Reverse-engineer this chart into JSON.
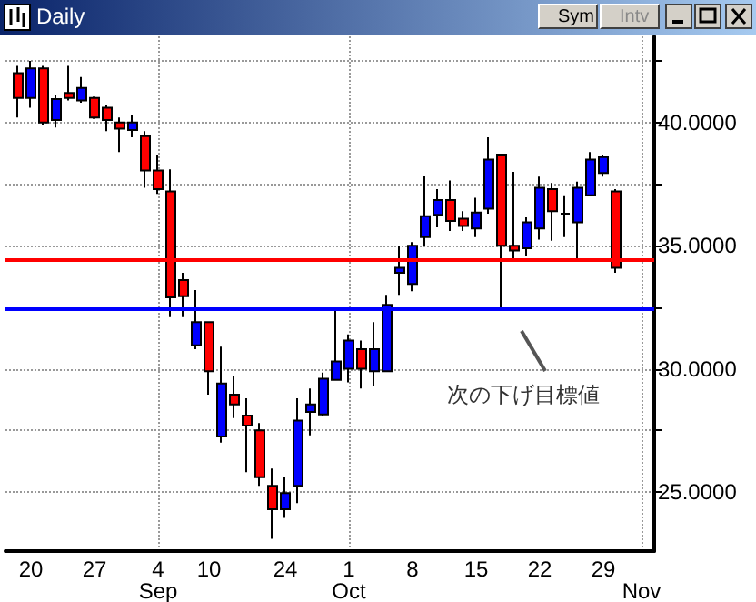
{
  "chart_data": {
    "type": "candlestick",
    "title": "Daily",
    "categories": [
      null,
      null,
      "20",
      null,
      null,
      null,
      null,
      "27",
      null,
      null,
      null,
      null,
      "4\nSep",
      null,
      null,
      null,
      "10",
      null,
      null,
      null,
      null,
      null,
      "24",
      null,
      null,
      null,
      null,
      "1\nOct",
      null,
      null,
      null,
      null,
      "8",
      null,
      null,
      null,
      null,
      "15",
      null,
      null,
      null,
      null,
      "22",
      null,
      null,
      null,
      null,
      "29",
      null,
      null,
      "\nNov",
      null
    ],
    "ohlc": [
      null,
      [
        42.0,
        42.3,
        40.2,
        41.0
      ],
      [
        41.0,
        42.5,
        40.6,
        42.2
      ],
      [
        42.2,
        42.3,
        39.9,
        40.0
      ],
      [
        40.1,
        41.1,
        39.8,
        40.95
      ],
      [
        41.2,
        42.3,
        40.9,
        41.0
      ],
      [
        40.9,
        41.85,
        40.8,
        41.4
      ],
      [
        41.0,
        41.05,
        40.15,
        40.2
      ],
      [
        40.6,
        40.7,
        39.65,
        40.1
      ],
      [
        40.0,
        40.2,
        38.8,
        39.75
      ],
      [
        39.7,
        40.3,
        39.4,
        40.0
      ],
      [
        39.45,
        39.65,
        37.35,
        38.05
      ],
      [
        38.05,
        38.7,
        37.1,
        37.3
      ],
      [
        37.2,
        38.1,
        32.1,
        32.9
      ],
      [
        33.6,
        33.9,
        32.1,
        32.95
      ],
      [
        30.95,
        33.2,
        30.8,
        31.9
      ],
      [
        31.9,
        31.9,
        28.95,
        29.9
      ],
      [
        27.25,
        30.9,
        27.0,
        29.4
      ],
      [
        28.95,
        29.7,
        28.0,
        28.55
      ],
      [
        28.1,
        28.8,
        25.8,
        27.7
      ],
      [
        27.5,
        27.8,
        25.25,
        25.6
      ],
      [
        25.25,
        25.95,
        23.1,
        24.3
      ],
      [
        24.3,
        25.6,
        23.95,
        24.95
      ],
      [
        25.25,
        28.8,
        24.55,
        27.9
      ],
      [
        28.25,
        29.2,
        27.3,
        28.55
      ],
      [
        28.15,
        29.85,
        28.1,
        29.6
      ],
      [
        29.55,
        32.35,
        29.55,
        30.3
      ],
      [
        30.0,
        31.4,
        29.45,
        31.15
      ],
      [
        30.8,
        31.15,
        29.2,
        30.0
      ],
      [
        29.9,
        31.9,
        29.3,
        30.8
      ],
      [
        29.9,
        33.0,
        29.9,
        32.6
      ],
      [
        33.9,
        35.0,
        33.0,
        34.1
      ],
      [
        33.45,
        35.15,
        33.15,
        35.0
      ],
      [
        35.35,
        37.85,
        35.0,
        36.2
      ],
      [
        36.25,
        37.3,
        35.75,
        36.85
      ],
      [
        36.85,
        37.65,
        35.6,
        36.0
      ],
      [
        36.1,
        36.4,
        35.6,
        35.8
      ],
      [
        35.7,
        36.95,
        35.35,
        36.35
      ],
      [
        36.5,
        39.4,
        36.3,
        38.5
      ],
      [
        38.7,
        38.7,
        32.45,
        35.0
      ],
      [
        35.0,
        38.0,
        34.45,
        34.8
      ],
      [
        34.9,
        36.15,
        34.6,
        35.95
      ],
      [
        35.7,
        37.8,
        35.25,
        37.35
      ],
      [
        37.3,
        37.55,
        35.2,
        36.4
      ],
      [
        36.3,
        37.05,
        35.35,
        36.3
      ],
      [
        35.95,
        37.6,
        34.35,
        37.35
      ],
      [
        37.05,
        38.8,
        37.05,
        38.5
      ],
      [
        37.95,
        38.7,
        37.8,
        38.6
      ],
      [
        37.2,
        37.3,
        33.9,
        34.1
      ],
      null,
      null,
      null
    ],
    "colors": [
      null,
      "#ff0000",
      "#0000ff",
      "#ff0000",
      "#0000ff",
      "#ff0000",
      "#0000ff",
      "#ff0000",
      "#ff0000",
      "#ff0000",
      "#0000ff",
      "#ff0000",
      "#ff0000",
      "#ff0000",
      "#ff0000",
      "#0000ff",
      "#ff0000",
      "#0000ff",
      "#ff0000",
      "#ff0000",
      "#ff0000",
      "#ff0000",
      "#0000ff",
      "#0000ff",
      "#0000ff",
      "#0000ff",
      "#0000ff",
      "#0000ff",
      "#ff0000",
      "#0000ff",
      "#0000ff",
      "#0000ff",
      "#0000ff",
      "#0000ff",
      "#0000ff",
      "#ff0000",
      "#ff0000",
      "#0000ff",
      "#0000ff",
      "#ff0000",
      "#ff0000",
      "#0000ff",
      "#0000ff",
      "#ff0000",
      "#000000",
      "#0000ff",
      "#0000ff",
      "#0000ff",
      "#ff0000",
      null,
      null,
      null
    ],
    "ylim": [
      22.6,
      43.5
    ],
    "yticks": [
      {
        "value": 25,
        "label": "25.0000"
      },
      {
        "value": 27.5,
        "label": null
      },
      {
        "value": 30,
        "label": "30.0000"
      },
      {
        "value": 32.5,
        "label": null
      },
      {
        "value": 35,
        "label": "35.0000"
      },
      {
        "value": 37.5,
        "label": null
      },
      {
        "value": 40,
        "label": "40.0000"
      },
      {
        "value": 42.5,
        "label": null
      }
    ],
    "grid": true,
    "ref_lines": [
      {
        "axis": "y",
        "value": 32.45,
        "color": "#0000ff"
      },
      {
        "axis": "y",
        "value": 34.4,
        "color": "#ff0000"
      }
    ],
    "annotations": [
      "次の下げ目標値",
      "Sym",
      "Intv"
    ]
  }
}
